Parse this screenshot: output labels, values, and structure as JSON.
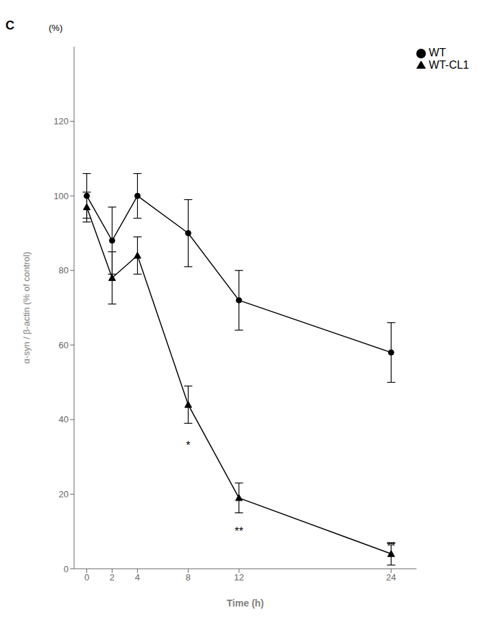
{
  "chart_data": {
    "type": "line",
    "title": "C",
    "xlabel": "Time (h)",
    "ylabel": "α-syn / β-actin (% of control)",
    "x": [
      0,
      2,
      4,
      8,
      12,
      24
    ],
    "series": [
      {
        "name": "WT",
        "color": "#000000",
        "marker": "circle",
        "line_style": "solid",
        "values": [
          100,
          88,
          100,
          90,
          72,
          58
        ],
        "errors": [
          6,
          9,
          6,
          9,
          8,
          8
        ]
      },
      {
        "name": "WT-CL1",
        "color": "#000000",
        "marker": "triangle",
        "line_style": "solid",
        "values": [
          97,
          78,
          84,
          44,
          19,
          4
        ],
        "errors": [
          4,
          7,
          5,
          5,
          4,
          3
        ]
      }
    ],
    "annotations": [
      {
        "text": "(%)"
      },
      {
        "text": "*",
        "x": 8,
        "y": 35
      },
      {
        "text": "**",
        "x": 12,
        "y": 12
      },
      {
        "text": "**",
        "x": 24,
        "y": 8
      }
    ],
    "xlim": [
      -1,
      26
    ],
    "xticks": [
      0,
      2,
      4,
      8,
      12,
      24
    ],
    "ylim": [
      0,
      140
    ],
    "yticks": [
      0,
      20,
      40,
      60,
      80,
      100,
      120
    ],
    "grid": false,
    "legend": "upper right"
  }
}
